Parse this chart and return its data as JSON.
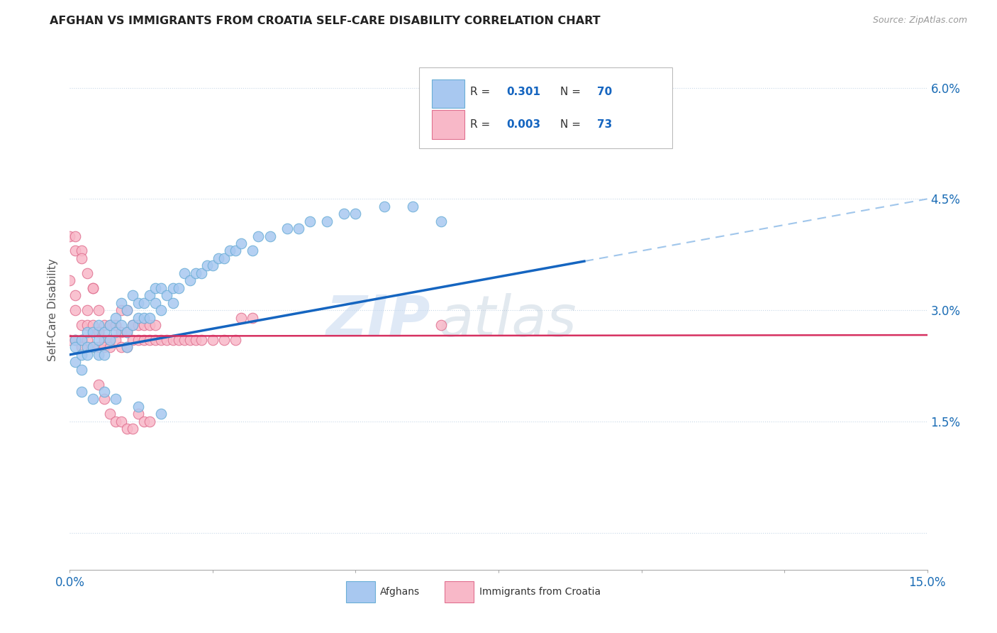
{
  "title": "AFGHAN VS IMMIGRANTS FROM CROATIA SELF-CARE DISABILITY CORRELATION CHART",
  "source": "Source: ZipAtlas.com",
  "ylabel": "Self-Care Disability",
  "xlim": [
    0.0,
    0.15
  ],
  "ylim": [
    -0.005,
    0.065
  ],
  "afghan_color": "#a8c8f0",
  "afghan_edge": "#6aaed6",
  "croatia_color": "#f8b8c8",
  "croatia_edge": "#e07090",
  "trend_afghan_color": "#1565c0",
  "trend_croatia_color": "#d63060",
  "trend_conf_color": "#90bce8",
  "legend_R_afghan": "0.301",
  "legend_N_afghan": "70",
  "legend_R_croatia": "0.003",
  "legend_N_croatia": "73",
  "watermark": "ZIPatlas",
  "afghan_x": [
    0.001,
    0.001,
    0.001,
    0.002,
    0.002,
    0.002,
    0.003,
    0.003,
    0.003,
    0.004,
    0.004,
    0.005,
    0.005,
    0.005,
    0.006,
    0.006,
    0.007,
    0.007,
    0.008,
    0.008,
    0.009,
    0.009,
    0.01,
    0.01,
    0.01,
    0.011,
    0.011,
    0.012,
    0.012,
    0.013,
    0.013,
    0.014,
    0.014,
    0.015,
    0.015,
    0.016,
    0.016,
    0.017,
    0.018,
    0.018,
    0.019,
    0.02,
    0.021,
    0.022,
    0.023,
    0.024,
    0.025,
    0.026,
    0.027,
    0.028,
    0.029,
    0.03,
    0.032,
    0.033,
    0.035,
    0.038,
    0.04,
    0.042,
    0.045,
    0.048,
    0.05,
    0.055,
    0.06,
    0.065,
    0.002,
    0.004,
    0.006,
    0.008,
    0.012,
    0.016
  ],
  "afghan_y": [
    0.026,
    0.025,
    0.023,
    0.024,
    0.026,
    0.022,
    0.025,
    0.027,
    0.024,
    0.027,
    0.025,
    0.024,
    0.026,
    0.028,
    0.024,
    0.027,
    0.026,
    0.028,
    0.027,
    0.029,
    0.028,
    0.031,
    0.025,
    0.027,
    0.03,
    0.028,
    0.032,
    0.029,
    0.031,
    0.029,
    0.031,
    0.029,
    0.032,
    0.031,
    0.033,
    0.03,
    0.033,
    0.032,
    0.033,
    0.031,
    0.033,
    0.035,
    0.034,
    0.035,
    0.035,
    0.036,
    0.036,
    0.037,
    0.037,
    0.038,
    0.038,
    0.039,
    0.038,
    0.04,
    0.04,
    0.041,
    0.041,
    0.042,
    0.042,
    0.043,
    0.043,
    0.044,
    0.044,
    0.042,
    0.019,
    0.018,
    0.019,
    0.018,
    0.017,
    0.016
  ],
  "croatia_x": [
    0.0,
    0.0,
    0.001,
    0.001,
    0.001,
    0.002,
    0.002,
    0.002,
    0.003,
    0.003,
    0.003,
    0.004,
    0.004,
    0.004,
    0.005,
    0.005,
    0.005,
    0.006,
    0.006,
    0.006,
    0.007,
    0.007,
    0.007,
    0.008,
    0.008,
    0.009,
    0.009,
    0.009,
    0.01,
    0.01,
    0.01,
    0.011,
    0.011,
    0.012,
    0.012,
    0.013,
    0.013,
    0.014,
    0.014,
    0.015,
    0.015,
    0.016,
    0.017,
    0.018,
    0.019,
    0.02,
    0.021,
    0.022,
    0.023,
    0.025,
    0.027,
    0.029,
    0.03,
    0.032,
    0.001,
    0.002,
    0.003,
    0.004,
    0.005,
    0.005,
    0.006,
    0.007,
    0.008,
    0.009,
    0.01,
    0.011,
    0.012,
    0.013,
    0.014,
    0.0,
    0.001,
    0.002,
    0.065
  ],
  "croatia_y": [
    0.026,
    0.034,
    0.026,
    0.03,
    0.032,
    0.026,
    0.028,
    0.025,
    0.026,
    0.028,
    0.03,
    0.025,
    0.028,
    0.033,
    0.025,
    0.027,
    0.03,
    0.026,
    0.028,
    0.025,
    0.026,
    0.028,
    0.025,
    0.026,
    0.028,
    0.025,
    0.027,
    0.03,
    0.025,
    0.027,
    0.03,
    0.026,
    0.028,
    0.026,
    0.028,
    0.026,
    0.028,
    0.026,
    0.028,
    0.026,
    0.028,
    0.026,
    0.026,
    0.026,
    0.026,
    0.026,
    0.026,
    0.026,
    0.026,
    0.026,
    0.026,
    0.026,
    0.029,
    0.029,
    0.038,
    0.038,
    0.035,
    0.033,
    0.027,
    0.02,
    0.018,
    0.016,
    0.015,
    0.015,
    0.014,
    0.014,
    0.016,
    0.015,
    0.015,
    0.04,
    0.04,
    0.037,
    0.028
  ]
}
